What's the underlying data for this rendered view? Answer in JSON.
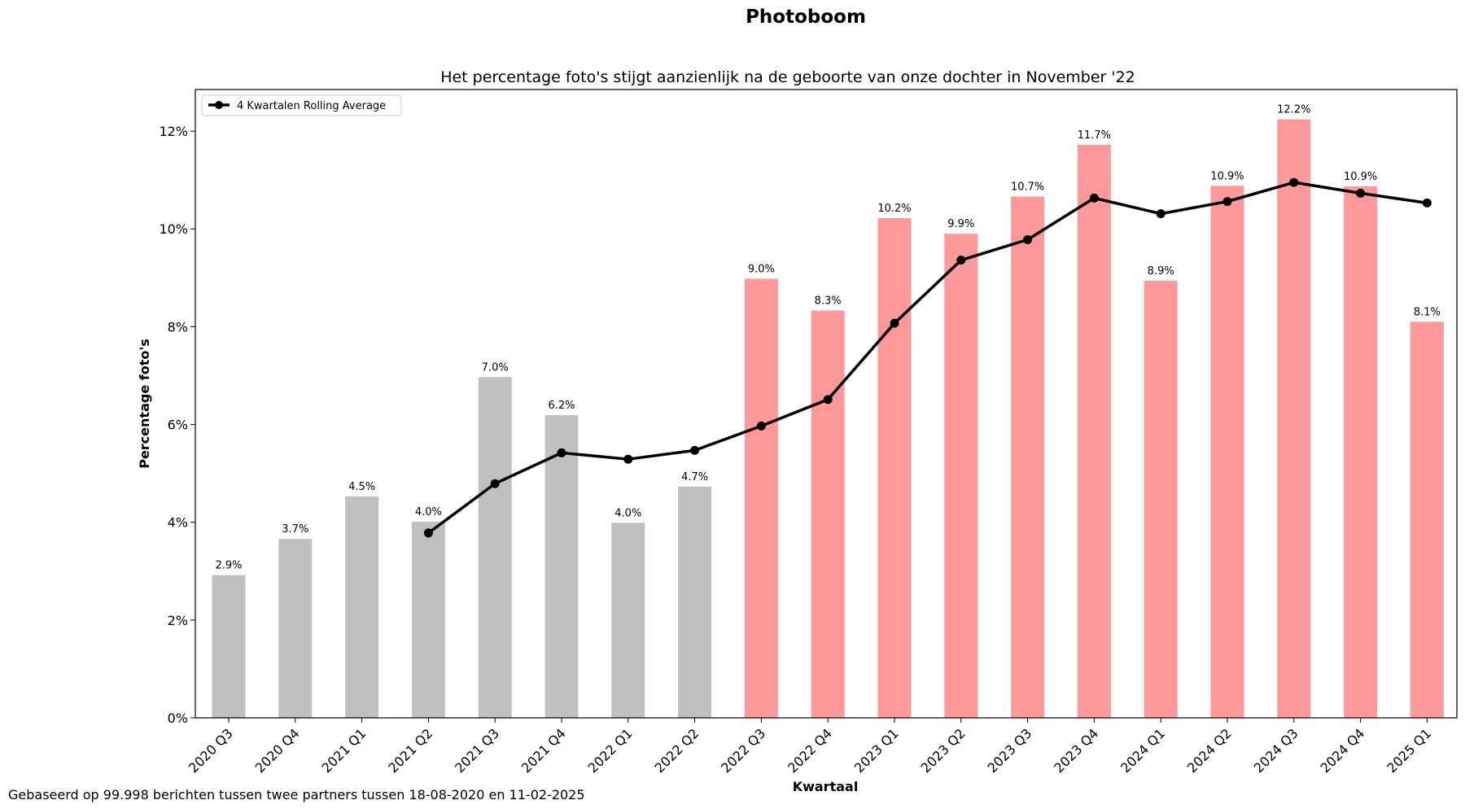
{
  "figure": {
    "suptitle": "Photoboom",
    "footnote": "Gebaseerd op 99.998 berichten tussen twee partners tussen 18-08-2020 en 11-02-2025"
  },
  "chart_data": {
    "type": "bar",
    "title": "Het percentage foto's stijgt aanzienlijk na de geboorte van onze dochter in November '22",
    "xlabel": "Kwartaal",
    "ylabel": "Percentage foto's",
    "ylim": [
      0,
      12.85
    ],
    "yticks": [
      0,
      2,
      4,
      6,
      8,
      10,
      12
    ],
    "ytick_labels": [
      "0%",
      "2%",
      "4%",
      "6%",
      "8%",
      "10%",
      "12%"
    ],
    "grid": false,
    "legend_position": "top-left",
    "categories": [
      "2020 Q3",
      "2020 Q4",
      "2021 Q1",
      "2021 Q2",
      "2021 Q3",
      "2021 Q4",
      "2022 Q1",
      "2022 Q2",
      "2022 Q3",
      "2022 Q4",
      "2023 Q1",
      "2023 Q2",
      "2023 Q3",
      "2023 Q4",
      "2024 Q1",
      "2024 Q2",
      "2024 Q3",
      "2024 Q4",
      "2025 Q1"
    ],
    "values": [
      2.92,
      3.66,
      4.53,
      4.01,
      6.97,
      6.19,
      3.99,
      4.73,
      8.98,
      8.33,
      10.22,
      9.9,
      10.66,
      11.72,
      8.94,
      10.88,
      12.24,
      10.87,
      8.1
    ],
    "value_labels": [
      "2.9%",
      "3.7%",
      "4.5%",
      "4.0%",
      "7.0%",
      "6.2%",
      "4.0%",
      "4.7%",
      "9.0%",
      "8.3%",
      "10.2%",
      "9.9%",
      "10.7%",
      "11.7%",
      "8.9%",
      "10.9%",
      "12.2%",
      "10.9%",
      "8.1%"
    ],
    "bar_colors": [
      "#c0c0c0",
      "#c0c0c0",
      "#c0c0c0",
      "#c0c0c0",
      "#c0c0c0",
      "#c0c0c0",
      "#c0c0c0",
      "#c0c0c0",
      "#ff9999",
      "#ff9999",
      "#ff9999",
      "#ff9999",
      "#ff9999",
      "#ff9999",
      "#ff9999",
      "#ff9999",
      "#ff9999",
      "#ff9999",
      "#ff9999"
    ],
    "line_series": {
      "name": "4 Kwartalen Rolling Average",
      "type": "line",
      "color": "#000000",
      "values": [
        null,
        null,
        null,
        3.78,
        4.79,
        5.42,
        5.29,
        5.47,
        5.97,
        6.51,
        8.07,
        9.36,
        9.78,
        10.63,
        10.31,
        10.56,
        10.95,
        10.73,
        10.53
      ]
    }
  }
}
